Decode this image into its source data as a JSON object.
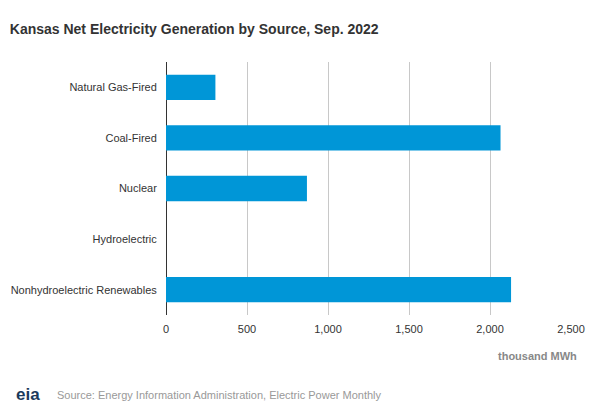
{
  "chart_data": {
    "type": "bar",
    "orientation": "horizontal",
    "title": "Kansas Net Electricity Generation by Source, Sep. 2022",
    "x_label": "thousand MWh",
    "categories": [
      "Natural Gas-Fired",
      "Coal-Fired",
      "Nuclear",
      "Hydroelectric",
      "Nonhydroelectric Renewables"
    ],
    "values": [
      305,
      2065,
      870,
      0,
      2130
    ],
    "color": "#0096d7",
    "xlim": [
      0,
      2500
    ],
    "xticks": [
      0,
      500,
      {
        "value": 1000,
        "label": "1,000"
      },
      {
        "value": 1500,
        "label": "1,500"
      },
      {
        "value": 2000,
        "label": "2,000"
      },
      {
        "value": 2500,
        "label": "2,500"
      }
    ],
    "grid": true,
    "logo": "eia",
    "source": "Source: Energy Information Administration, Electric Power Monthly"
  }
}
